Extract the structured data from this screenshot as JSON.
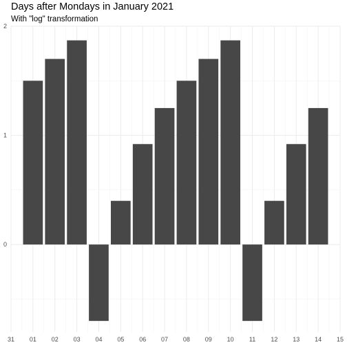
{
  "chart_data": {
    "type": "bar",
    "title": "Days after Mondays in January 2021",
    "subtitle": "With \"log\" transformation",
    "xlabel": "",
    "ylabel": "",
    "x_ticks": [
      "31",
      "01",
      "02",
      "03",
      "04",
      "05",
      "06",
      "07",
      "08",
      "09",
      "10",
      "11",
      "12",
      "13",
      "14",
      "15"
    ],
    "categories": [
      "01",
      "02",
      "03",
      "04",
      "05",
      "06",
      "07",
      "08",
      "09",
      "10",
      "11",
      "12",
      "13",
      "14"
    ],
    "values": [
      1.5,
      1.7,
      1.87,
      -0.7,
      0.4,
      0.92,
      1.25,
      1.5,
      1.7,
      1.87,
      -0.7,
      0.4,
      0.92,
      1.25
    ],
    "y_ticks": [
      0,
      1,
      2
    ],
    "ylim": [
      -0.8,
      2.0
    ],
    "bar_color": "#474747",
    "grid": true,
    "grid_color": "#ebebeb",
    "legend": "none"
  }
}
